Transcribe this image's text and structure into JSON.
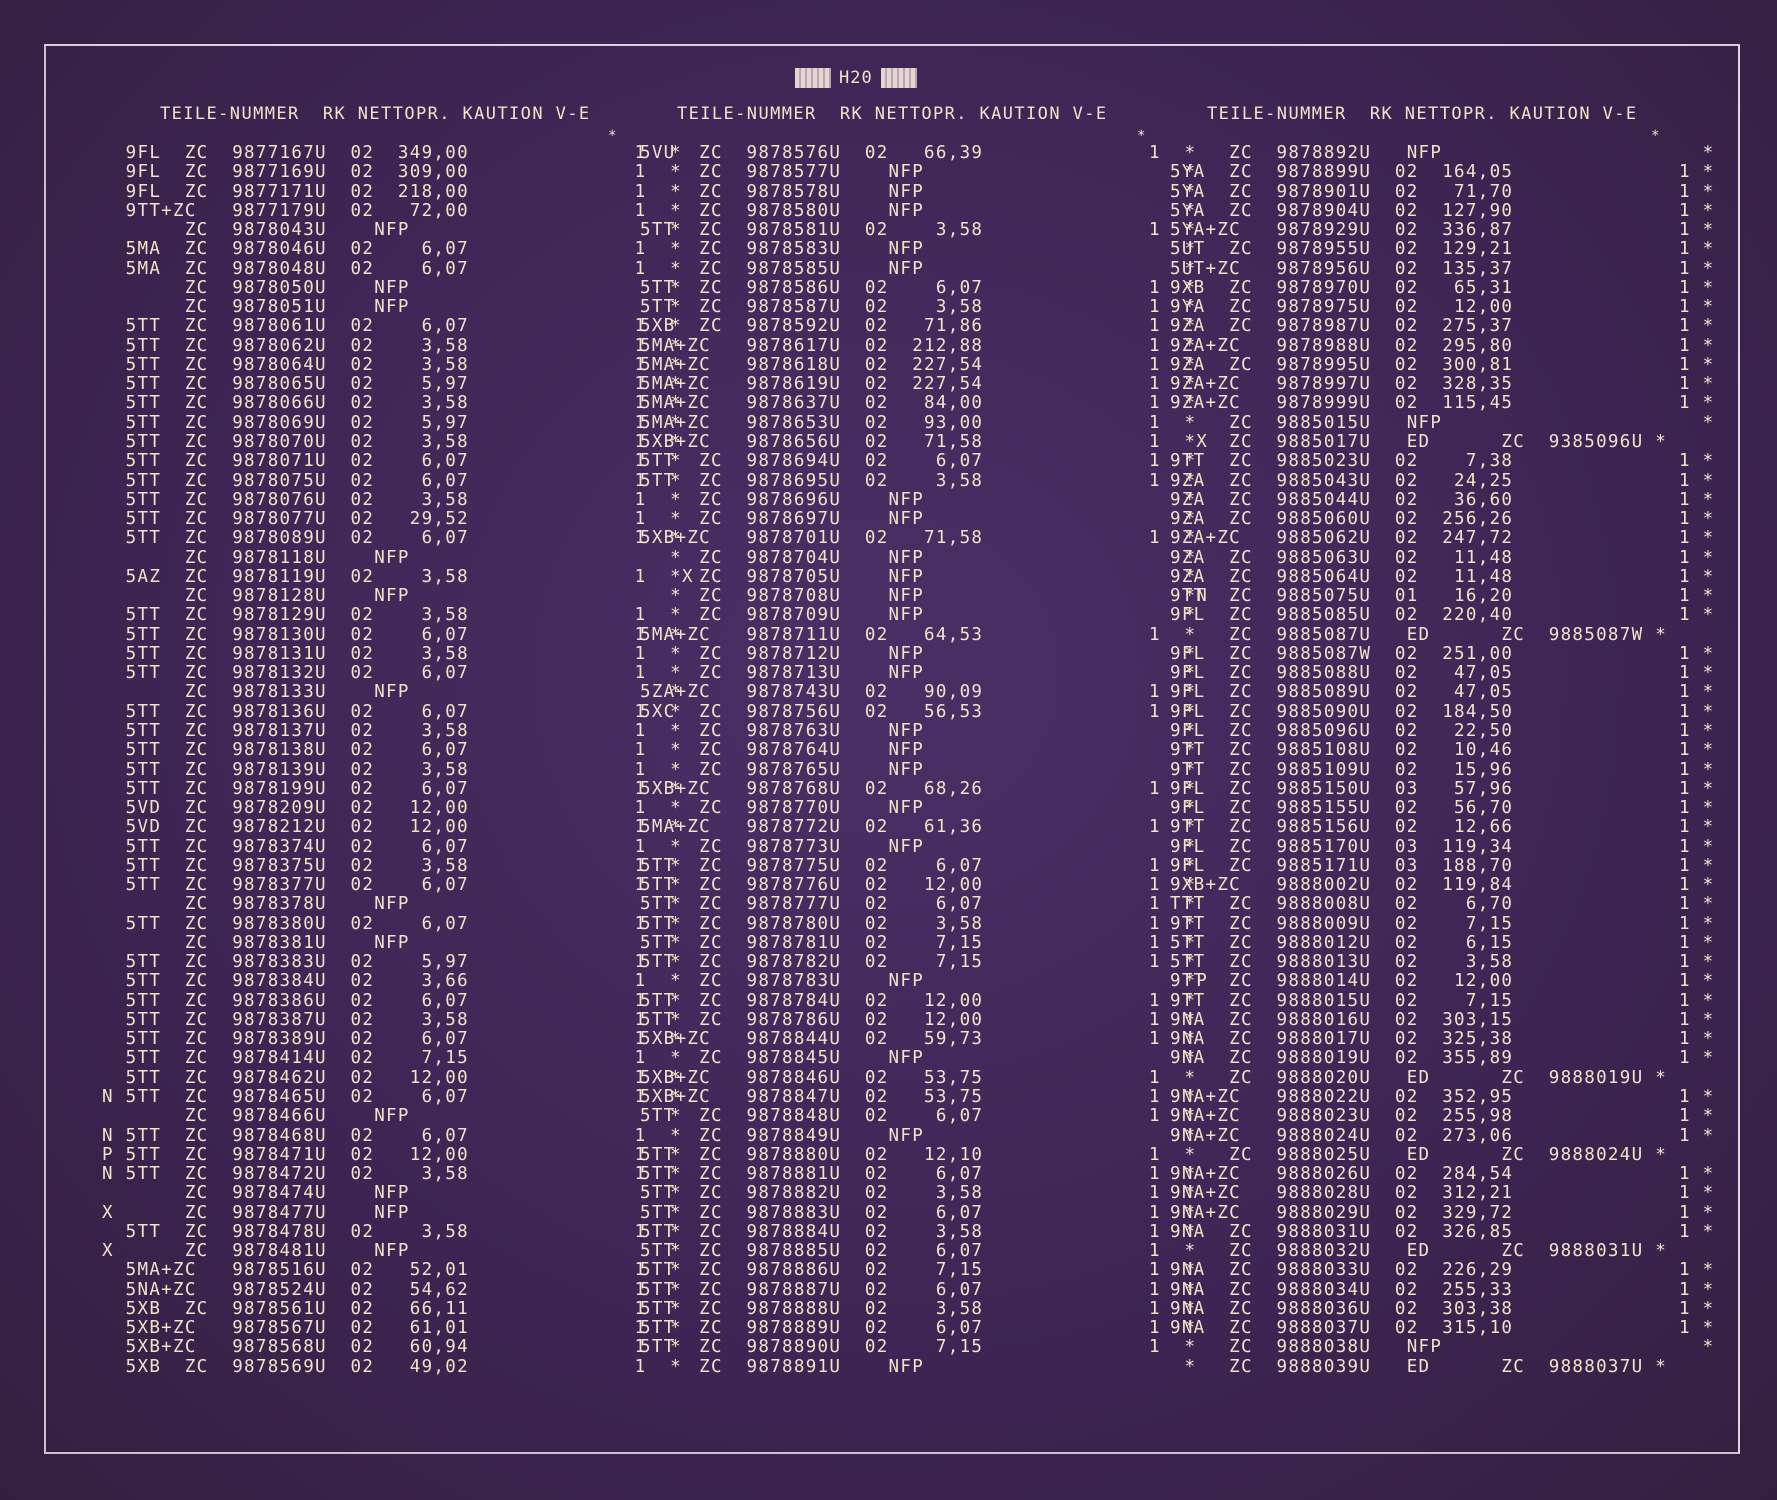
{
  "title": "H20",
  "headers": [
    "TEILE-NUMMER  RK NETTOPR. KAUTION V-E",
    "TEILE-NUMMER  RK NETTOPR. KAUTION V-E",
    "TEILE-NUMMER  RK NETTOPR. KAUTION V-E"
  ],
  "col1_top": "*",
  "col2_top": "*",
  "col3_top": "*",
  "col1": [
    "  9FL  ZC  9877167U  02  349,00              1  *",
    "  9FL  ZC  9877169U  02  309,00              1  *",
    "  9FL  ZC  9877171U  02  218,00              1  *",
    "  9TT+ZC   9877179U  02   72,00              1  *",
    "       ZC  9878043U    NFP                      *",
    "  5MA  ZC  9878046U  02    6,07              1  *",
    "  5MA  ZC  9878048U  02    6,07              1  *",
    "       ZC  9878050U    NFP                      *",
    "       ZC  9878051U    NFP                      *",
    "  5TT  ZC  9878061U  02    6,07              1  *",
    "  5TT  ZC  9878062U  02    3,58              1  *",
    "  5TT  ZC  9878064U  02    3,58              1  *",
    "  5TT  ZC  9878065U  02    5,97              1  *",
    "  5TT  ZC  9878066U  02    3,58              1  *",
    "  5TT  ZC  9878069U  02    5,97              1  *",
    "  5TT  ZC  9878070U  02    3,58              1  *",
    "  5TT  ZC  9878071U  02    6,07              1  *",
    "  5TT  ZC  9878075U  02    6,07              1  *",
    "  5TT  ZC  9878076U  02    3,58              1  *",
    "  5TT  ZC  9878077U  02   29,52              1  *",
    "  5TT  ZC  9878089U  02    6,07              1  *",
    "       ZC  9878118U    NFP                      *",
    "  5AZ  ZC  9878119U  02    3,58              1  *X",
    "       ZC  9878128U    NFP                      *",
    "  5TT  ZC  9878129U  02    3,58              1  *",
    "  5TT  ZC  9878130U  02    6,07              1  *",
    "  5TT  ZC  9878131U  02    3,58              1  *",
    "  5TT  ZC  9878132U  02    6,07              1  *",
    "       ZC  9878133U    NFP                      *",
    "  5TT  ZC  9878136U  02    6,07              1  *",
    "  5TT  ZC  9878137U  02    3,58              1  *",
    "  5TT  ZC  9878138U  02    6,07              1  *",
    "  5TT  ZC  9878139U  02    3,58              1  *",
    "  5TT  ZC  9878199U  02    6,07              1  *",
    "  5VD  ZC  9878209U  02   12,00              1  *",
    "  5VD  ZC  9878212U  02   12,00              1  *",
    "  5TT  ZC  9878374U  02    6,07              1  *",
    "  5TT  ZC  9878375U  02    3,58              1  *",
    "  5TT  ZC  9878377U  02    6,07              1  *",
    "       ZC  9878378U    NFP                      *",
    "  5TT  ZC  9878380U  02    6,07              1  *",
    "       ZC  9878381U    NFP                      *",
    "  5TT  ZC  9878383U  02    5,97              1  *",
    "  5TT  ZC  9878384U  02    3,66              1  *",
    "  5TT  ZC  9878386U  02    6,07              1  *",
    "  5TT  ZC  9878387U  02    3,58              1  *",
    "  5TT  ZC  9878389U  02    6,07              1  *",
    "  5TT  ZC  9878414U  02    7,15              1  *",
    "  5TT  ZC  9878462U  02   12,00              1  *",
    "N 5TT  ZC  9878465U  02    6,07              1  *",
    "       ZC  9878466U    NFP                      *",
    "N 5TT  ZC  9878468U  02    6,07              1  *",
    "P 5TT  ZC  9878471U  02   12,00              1  *",
    "N 5TT  ZC  9878472U  02    3,58              1  *",
    "       ZC  9878474U    NFP                      *",
    "X      ZC  9878477U    NFP                      *",
    "  5TT  ZC  9878478U  02    3,58              1  *",
    "X      ZC  9878481U    NFP                      *",
    "  5MA+ZC   9878516U  02   52,01              1  *",
    "  5NA+ZC   9878524U  02   54,62              1  *",
    "  5XB  ZC  9878561U  02   66,11              1  *",
    "  5XB+ZC   9878567U  02   61,01              1  *",
    "  5XB+ZC   9878568U  02   60,94              1  *",
    "  5XB  ZC  9878569U  02   49,02              1  *"
  ],
  "col2": [
    "5VU  ZC  9878576U  02   66,39              1  *",
    "     ZC  9878577U    NFP                      *",
    "     ZC  9878578U    NFP                      *",
    "     ZC  9878580U    NFP                      *",
    "5TT  ZC  9878581U  02    3,58              1  *",
    "     ZC  9878583U    NFP                      *",
    "     ZC  9878585U    NFP                      *",
    "5TT  ZC  9878586U  02    6,07              1  *",
    "5TT  ZC  9878587U  02    3,58              1  *",
    "5XB  ZC  9878592U  02   71,86              1  *",
    "5MA+ZC   9878617U  02  212,88              1  *",
    "5MA+ZC   9878618U  02  227,54              1  *",
    "5MA+ZC   9878619U  02  227,54              1  *",
    "5MA+ZC   9878637U  02   84,00              1  *",
    "5MA+ZC   9878653U  02   93,00              1  *",
    "5XB+ZC   9878656U  02   71,58              1  *X",
    "5TT  ZC  9878694U  02    6,07              1  *",
    "5TT  ZC  9878695U  02    3,58              1  *",
    "     ZC  9878696U    NFP                      *",
    "     ZC  9878697U    NFP                      *",
    "5XB+ZC   9878701U  02   71,58              1  *",
    "     ZC  9878704U    NFP                      *",
    "     ZC  9878705U    NFP                      *",
    "     ZC  9878708U    NFP                      *N",
    "     ZC  9878709U    NFP                      *",
    "5MA+ZC   9878711U  02   64,53              1  *",
    "     ZC  9878712U    NFP                      *",
    "     ZC  9878713U    NFP                      *",
    "5ZA+ZC   9878743U  02   90,09              1  *",
    "5XC  ZC  9878756U  02   56,53              1  *",
    "     ZC  9878763U    NFP                      *",
    "     ZC  9878764U    NFP                      *",
    "     ZC  9878765U    NFP                      *",
    "5XB+ZC   9878768U  02   68,26              1  *",
    "     ZC  9878770U    NFP                      *",
    "5MA+ZC   9878772U  02   61,36              1  *",
    "     ZC  9878773U    NFP                      *",
    "5TT  ZC  9878775U  02    6,07              1  *",
    "5TT  ZC  9878776U  02   12,00              1  *",
    "5TT  ZC  9878777U  02    6,07              1  *",
    "5TT  ZC  9878780U  02    3,58              1  *",
    "5TT  ZC  9878781U  02    7,15              1  *",
    "5TT  ZC  9878782U  02    7,15              1  *",
    "     ZC  9878783U    NFP                      *P",
    "5TT  ZC  9878784U  02   12,00              1  *",
    "5TT  ZC  9878786U  02   12,00              1  *",
    "5XB+ZC   9878844U  02   59,73              1  *",
    "     ZC  9878845U    NFP                      *",
    "5XB+ZC   9878846U  02   53,75              1  *",
    "5XB+ZC   9878847U  02   53,75              1  *",
    "5TT  ZC  9878848U  02    6,07              1  *",
    "     ZC  9878849U    NFP                      *",
    "5TT  ZC  9878880U  02   12,10              1  *",
    "5TT  ZC  9878881U  02    6,07              1  *",
    "5TT  ZC  9878882U  02    3,58              1  *",
    "5TT  ZC  9878883U  02    6,07              1  *",
    "5TT  ZC  9878884U  02    3,58              1  *",
    "5TT  ZC  9878885U  02    6,07              1  *",
    "5TT  ZC  9878886U  02    7,15              1  *",
    "5TT  ZC  9878887U  02    6,07              1  *",
    "5TT  ZC  9878888U  02    3,58              1  *",
    "5TT  ZC  9878889U  02    6,07              1  *",
    "5TT  ZC  9878890U  02    7,15              1  *",
    "     ZC  9878891U    NFP                      *"
  ],
  "col3": [
    "     ZC  9878892U   NFP                      *",
    "5YA  ZC  9878899U  02  164,05              1 *",
    "5YA  ZC  9878901U  02   71,70              1 *",
    "5YA  ZC  9878904U  02  127,90              1 *",
    "5YA+ZC   9878929U  02  336,87              1 *",
    "5UT  ZC  9878955U  02  129,21              1 *",
    "5UT+ZC   9878956U  02  135,37              1 *",
    "9XB  ZC  9878970U  02   65,31              1 *",
    "9YA  ZC  9878975U  02   12,00              1 *",
    "9ZA  ZC  9878987U  02  275,37              1 *",
    "9ZA+ZC   9878988U  02  295,80              1 *",
    "9ZA  ZC  9878995U  02  300,81              1 *",
    "9ZA+ZC   9878997U  02  328,35              1 *",
    "9ZA+ZC   9878999U  02  115,45              1 *",
    "     ZC  9885015U   NFP                      *",
    "     ZC  9885017U   ED      ZC  9385096U *",
    "9TT  ZC  9885023U  02    7,38              1 *",
    "9ZA  ZC  9885043U  02   24,25              1 *",
    "9ZA  ZC  9885044U  02   36,60              1 *",
    "9ZA  ZC  9885060U  02  256,26              1 *",
    "9ZA+ZC   9885062U  02  247,72              1 *",
    "9ZA  ZC  9885063U  02   11,48              1 *",
    "9ZA  ZC  9885064U  02   11,48              1 *",
    "9TT  ZC  9885075U  01   16,20              1 *",
    "9FL  ZC  9885085U  02  220,40              1 *",
    "     ZC  9885087U   ED      ZC  9885087W *",
    "9FL  ZC  9885087W  02  251,00              1 *",
    "9FL  ZC  9885088U  02   47,05              1 *",
    "9FL  ZC  9885089U  02   47,05              1 *",
    "9FL  ZC  9885090U  02  184,50              1 *",
    "9FL  ZC  9885096U  02   22,50              1 *",
    "9TT  ZC  9885108U  02   10,46              1 *",
    "9TT  ZC  9885109U  02   15,96              1 *",
    "9FL  ZC  9885150U  03   57,96              1 *",
    "9FL  ZC  9885155U  02   56,70              1 *",
    "9TT  ZC  9885156U  02   12,66              1 *",
    "9FL  ZC  9885170U  03  119,34              1 *",
    "9FL  ZC  9885171U  03  188,70              1 *",
    "9XB+ZC   9888002U  02  119,84              1 *",
    "TTT  ZC  9888008U  02    6,70              1 *",
    "9TT  ZC  9888009U  02    7,15              1 *",
    "5TT  ZC  9888012U  02    6,15              1 *",
    "5TT  ZC  9888013U  02    3,58              1 *",
    "9TT  ZC  9888014U  02   12,00              1 *",
    "9TT  ZC  9888015U  02    7,15              1 *",
    "9NA  ZC  9888016U  02  303,15              1 *",
    "9NA  ZC  9888017U  02  325,38              1 *",
    "9NA  ZC  9888019U  02  355,89              1 *",
    "     ZC  9888020U   ED      ZC  9888019U *",
    "9NA+ZC   9888022U  02  352,95              1 *",
    "9NA+ZC   9888023U  02  255,98              1 *",
    "9NA+ZC   9888024U  02  273,06              1 *",
    "     ZC  9888025U   ED      ZC  9888024U *",
    "9NA+ZC   9888026U  02  284,54              1 *",
    "9NA+ZC   9888028U  02  312,21              1 *",
    "9NA+ZC   9888029U  02  329,72              1 *",
    "9NA  ZC  9888031U  02  326,85              1 *",
    "     ZC  9888032U   ED      ZC  9888031U *",
    "9NA  ZC  9888033U  02  226,29              1 *",
    "9NA  ZC  9888034U  02  255,33              1 *",
    "9NA  ZC  9888036U  02  303,38              1 *",
    "9NA  ZC  9888037U  02  315,10              1 *",
    "     ZC  9888038U   NFP                      *",
    "     ZC  9888039U   ED      ZC  9888037U *"
  ]
}
